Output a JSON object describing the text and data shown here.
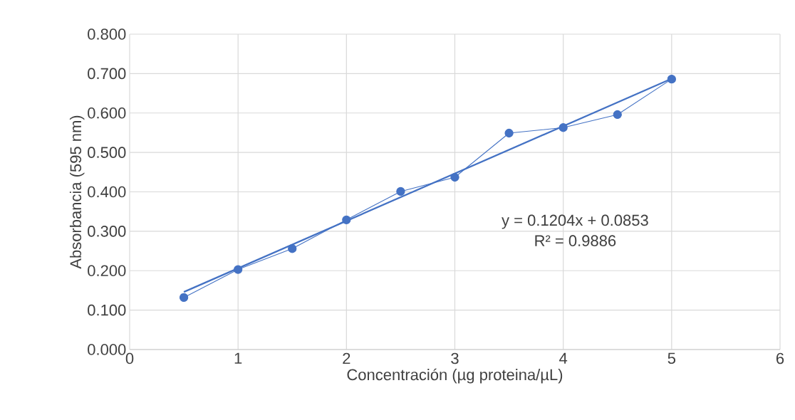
{
  "chart_data": {
    "type": "line",
    "xlabel": "Concentración (µg proteina/µL)",
    "ylabel": "Absorbancia (595 nm)",
    "xlim": [
      0,
      6
    ],
    "xticks": [
      0,
      1,
      2,
      3,
      4,
      5,
      6
    ],
    "ylim": [
      0,
      0.8
    ],
    "yticks": [
      {
        "value": 0,
        "label": "0.000"
      },
      {
        "value": 0.1,
        "label": "0.100"
      },
      {
        "value": 0.2,
        "label": "0.200"
      },
      {
        "value": 0.3,
        "label": "0.300"
      },
      {
        "value": 0.4,
        "label": "0.400"
      },
      {
        "value": 0.5,
        "label": "0.500"
      },
      {
        "value": 0.6,
        "label": "0.600"
      },
      {
        "value": 0.7,
        "label": "0.700"
      },
      {
        "value": 0.8,
        "label": "0.800"
      }
    ],
    "grid": true,
    "series": [
      {
        "color": "#4472c4",
        "marker": "circle",
        "x": [
          0.5,
          1,
          1.5,
          2,
          2.5,
          3,
          3.5,
          4,
          4.5,
          5
        ],
        "values": [
          0.132,
          0.203,
          0.256,
          0.329,
          0.401,
          0.437,
          0.549,
          0.563,
          0.596,
          0.686
        ]
      },
      {
        "color": "#4472c4",
        "marker": "none",
        "x": [
          0.5,
          5
        ],
        "values": [
          0.146,
          0.687
        ]
      }
    ],
    "annotations": [
      "y = 0.1204x + 0.0853",
      "R² = 0.9886"
    ]
  }
}
